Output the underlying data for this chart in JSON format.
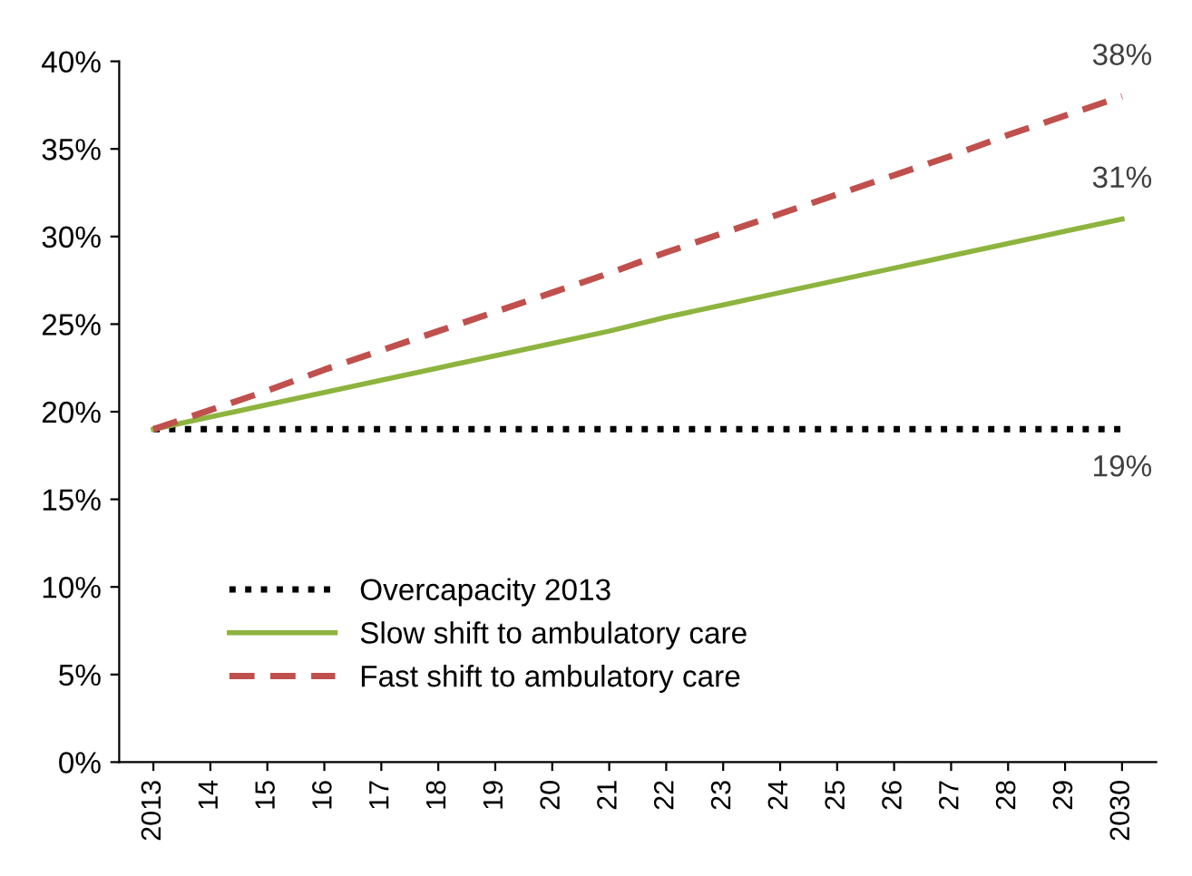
{
  "chart_data": {
    "type": "line",
    "categories": [
      "2013",
      "14",
      "15",
      "16",
      "17",
      "18",
      "19",
      "20",
      "21",
      "22",
      "23",
      "24",
      "25",
      "26",
      "27",
      "28",
      "29",
      "2030"
    ],
    "series": [
      {
        "name": "Overcapacity 2013",
        "color": "#000000",
        "line_style": "dotted",
        "values": [
          19,
          19,
          19,
          19,
          19,
          19,
          19,
          19,
          19,
          19,
          19,
          19,
          19,
          19,
          19,
          19,
          19,
          19
        ],
        "value_labels": [
          null,
          null,
          null,
          null,
          null,
          null,
          null,
          null,
          null,
          null,
          null,
          null,
          null,
          null,
          null,
          null,
          null,
          "19%"
        ]
      },
      {
        "name": "Slow shift to ambulatory care",
        "color": "#8db43e",
        "line_style": "solid",
        "values": [
          19,
          19.7,
          20.4,
          21.1,
          21.8,
          22.5,
          23.2,
          23.9,
          24.6,
          25.4,
          26.1,
          26.8,
          27.5,
          28.2,
          28.9,
          29.6,
          30.3,
          31
        ],
        "value_labels": [
          null,
          null,
          null,
          null,
          null,
          null,
          null,
          null,
          null,
          null,
          null,
          null,
          null,
          null,
          null,
          null,
          null,
          "31%"
        ]
      },
      {
        "name": "Fast shift to ambulatory care",
        "color": "#c0504d",
        "line_style": "dashed",
        "values": [
          19,
          20.1,
          21.2,
          22.4,
          23.5,
          24.6,
          25.7,
          26.8,
          27.9,
          29.1,
          30.2,
          31.3,
          32.4,
          33.5,
          34.6,
          35.8,
          36.9,
          38
        ],
        "value_labels": [
          null,
          null,
          null,
          null,
          null,
          null,
          null,
          null,
          null,
          null,
          null,
          null,
          null,
          null,
          null,
          null,
          null,
          "38%"
        ]
      }
    ],
    "ylim": [
      0,
      40
    ],
    "yticks": [
      {
        "value": 0,
        "label": "0%"
      },
      {
        "value": 5,
        "label": "5%"
      },
      {
        "value": 10,
        "label": "10%"
      },
      {
        "value": 15,
        "label": "15%"
      },
      {
        "value": 20,
        "label": "20%"
      },
      {
        "value": 25,
        "label": "25%"
      },
      {
        "value": 30,
        "label": "30%"
      },
      {
        "value": 35,
        "label": "35%"
      },
      {
        "value": 40,
        "label": "40%"
      }
    ],
    "grid": false,
    "legend": "bottom left",
    "marker": "none"
  }
}
